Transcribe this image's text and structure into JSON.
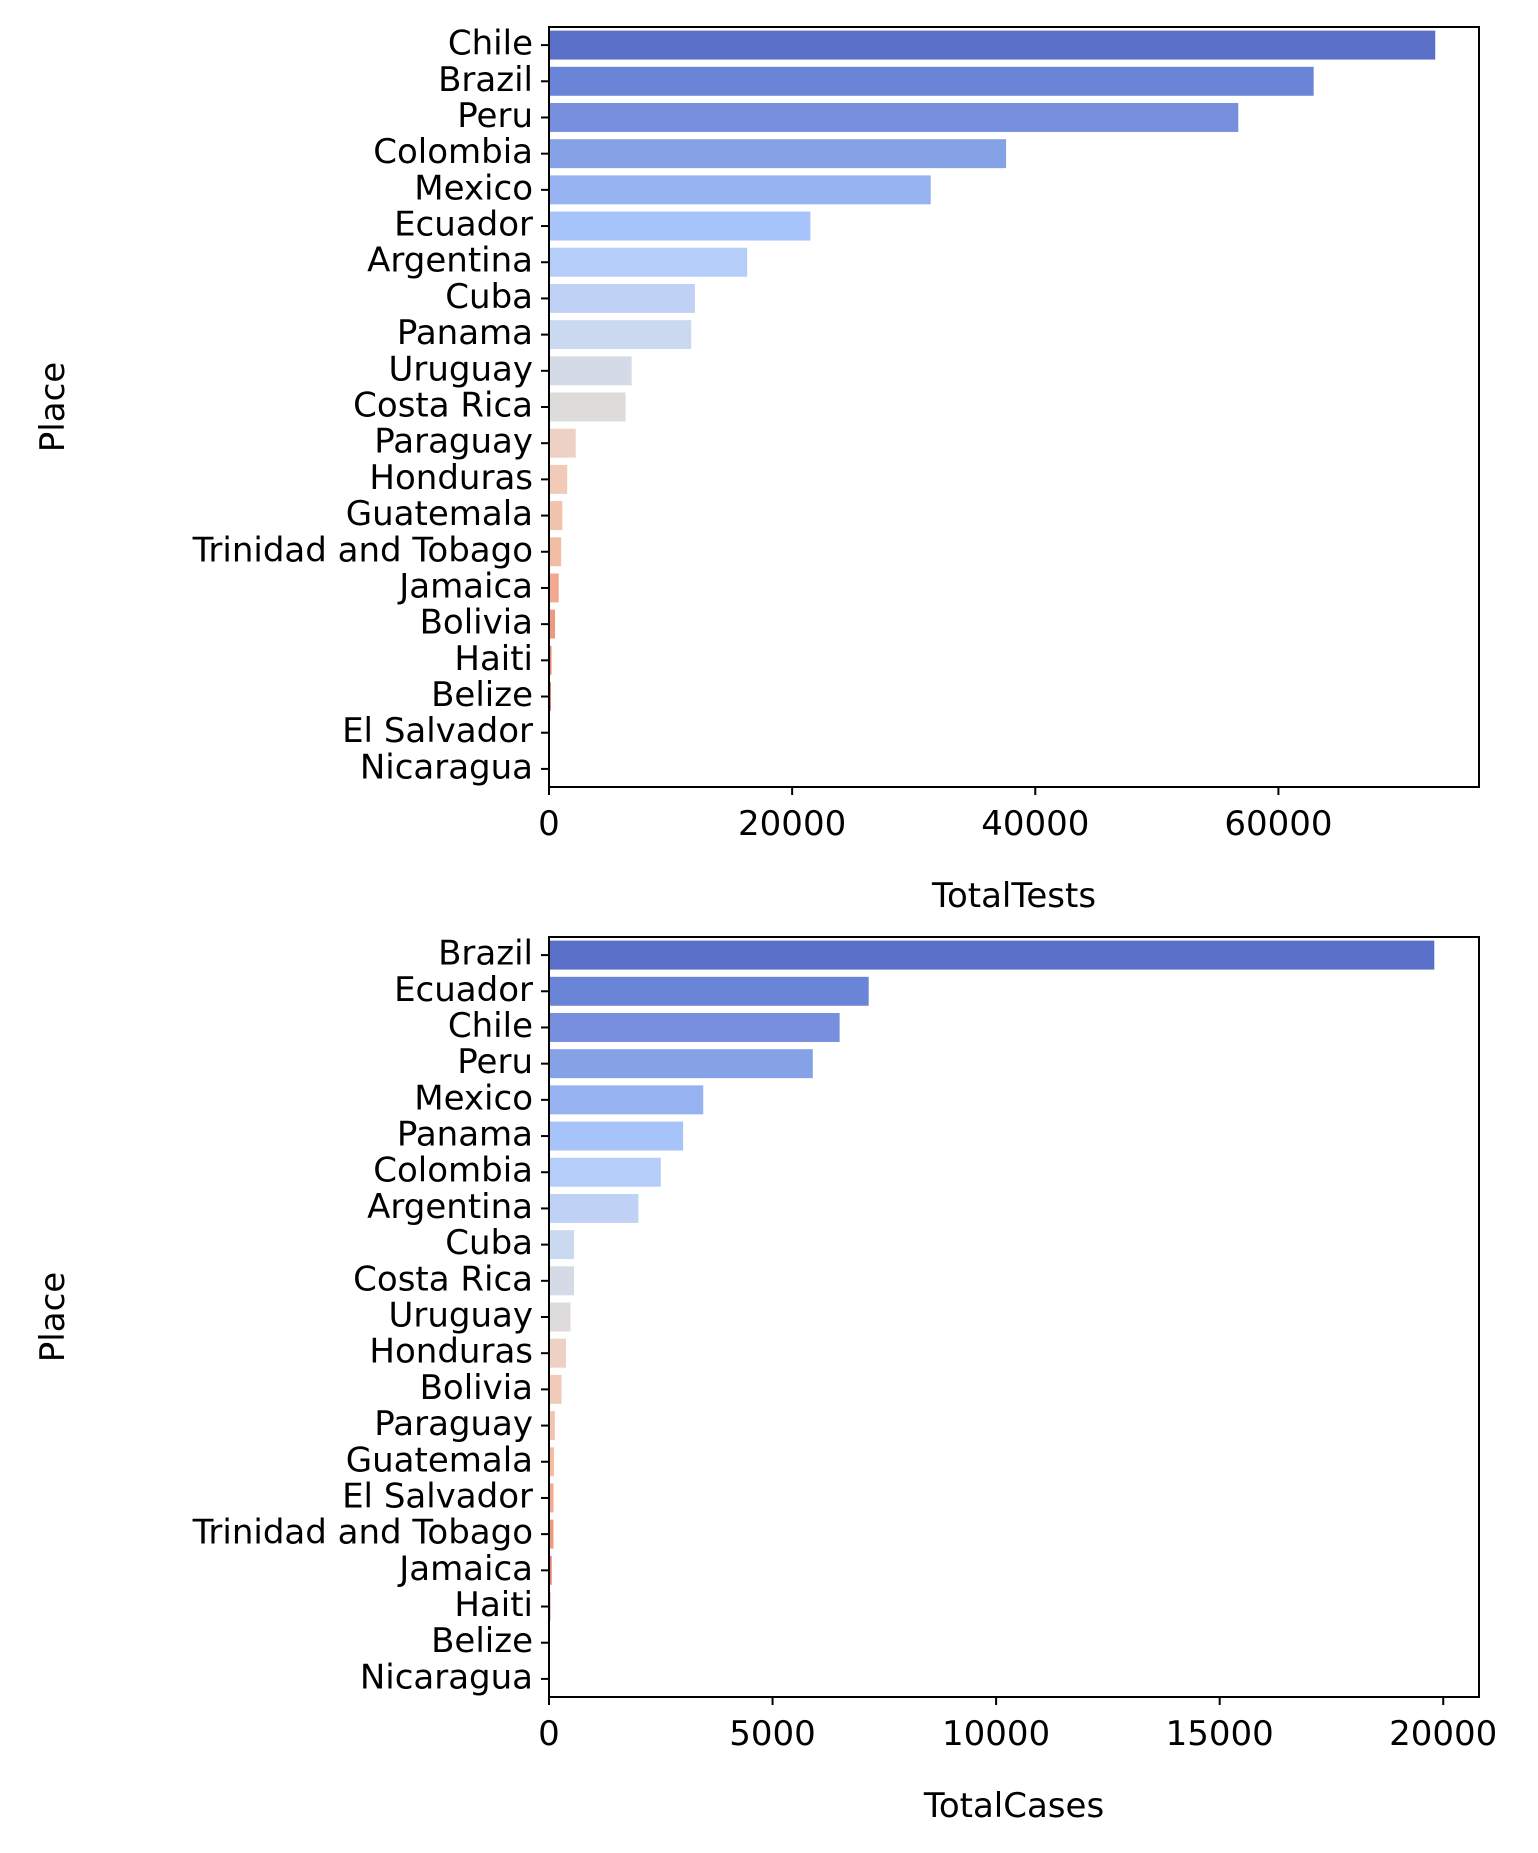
{
  "chart_data": [
    {
      "type": "bar",
      "orientation": "horizontal",
      "xlabel": "TotalTests",
      "ylabel": "Place",
      "xlim": [
        0,
        76500
      ],
      "xticks": [
        0,
        20000,
        40000,
        60000
      ],
      "grid": false,
      "categories": [
        "Chile",
        "Brazil",
        "Peru",
        "Colombia",
        "Mexico",
        "Ecuador",
        "Argentina",
        "Cuba",
        "Panama",
        "Uruguay",
        "Costa Rica",
        "Paraguay",
        "Honduras",
        "Guatemala",
        "Trinidad and Tobago",
        "Jamaica",
        "Bolivia",
        "Haiti",
        "Belize",
        "El Salvador",
        "Nicaragua"
      ],
      "values": [
        72900,
        62900,
        56700,
        37600,
        31400,
        21500,
        16300,
        12000,
        11700,
        6800,
        6300,
        2200,
        1500,
        1100,
        1000,
        800,
        500,
        200,
        150,
        0,
        0
      ],
      "colors": [
        "#5a6fc8",
        "#6a85d8",
        "#778fdd",
        "#86a2e6",
        "#96b2f0",
        "#a6c3fa",
        "#b5cdf9",
        "#bfd2f5",
        "#cad8f0",
        "#d5dbe6",
        "#dedcdb",
        "#efd0c4",
        "#f2cbb8",
        "#f2c3ad",
        "#f3bda3",
        "#f2a891",
        "#ec9a83",
        "#e4836c",
        "#d66753",
        "#c8503f",
        "#b83d33"
      ]
    },
    {
      "type": "bar",
      "orientation": "horizontal",
      "xlabel": "TotalCases",
      "ylabel": "Place",
      "xlim": [
        0,
        20800
      ],
      "xticks": [
        0,
        5000,
        10000,
        15000,
        20000
      ],
      "grid": false,
      "categories": [
        "Brazil",
        "Ecuador",
        "Chile",
        "Peru",
        "Mexico",
        "Panama",
        "Colombia",
        "Argentina",
        "Cuba",
        "Costa Rica",
        "Uruguay",
        "Honduras",
        "Bolivia",
        "Paraguay",
        "Guatemala",
        "El Salvador",
        "Trinidad and Tobago",
        "Jamaica",
        "Haiti",
        "Belize",
        "Nicaragua"
      ],
      "values": [
        19800,
        7150,
        6500,
        5900,
        3450,
        3000,
        2500,
        2000,
        560,
        560,
        480,
        380,
        280,
        130,
        110,
        100,
        100,
        60,
        30,
        20,
        10
      ],
      "colors": [
        "#5a6fc8",
        "#6a85d8",
        "#778fdd",
        "#86a2e6",
        "#96b2f0",
        "#a6c3fa",
        "#b5cdf9",
        "#bfd2f5",
        "#cad8f0",
        "#d5dbe6",
        "#dedcdb",
        "#efd0c4",
        "#f2cbb8",
        "#f2c3ad",
        "#f3bda3",
        "#f2a891",
        "#ec9a83",
        "#e4836c",
        "#d66753",
        "#c8503f",
        "#b83d33"
      ]
    }
  ]
}
